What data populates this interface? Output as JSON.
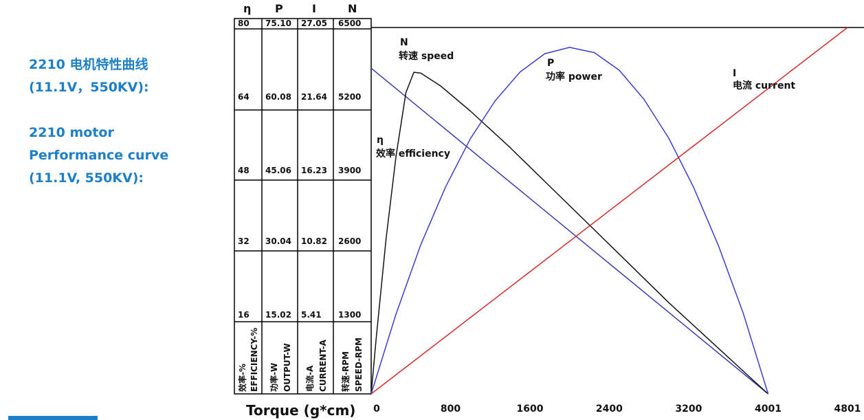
{
  "caption": {
    "line1": "2210 电机特性曲线",
    "line2": "(11.1V，550KV):",
    "line3": "2210 motor",
    "line4": "Performance curve",
    "line5": "(11.1V, 550KV):"
  },
  "table": {
    "columns": [
      {
        "symbol": "η",
        "name_cn": "效率-%",
        "name_en": "EFFICIENCY-%",
        "values": [
          "80",
          "64",
          "48",
          "32",
          "16"
        ]
      },
      {
        "symbol": "P",
        "name_cn": "功率-W",
        "name_en": "OUTPUT-W",
        "values": [
          "75.10",
          "60.08",
          "45.06",
          "30.04",
          "15.02"
        ]
      },
      {
        "symbol": "I",
        "name_cn": "电流-A",
        "name_en": "CURRENT-A",
        "values": [
          "27.05",
          "21.64",
          "16.23",
          "10.82",
          "5.41"
        ]
      },
      {
        "symbol": "N",
        "name_cn": "转速-RPM",
        "name_en": "SPEED-RPM",
        "values": [
          "6500",
          "5200",
          "3900",
          "2600",
          "1300"
        ]
      }
    ]
  },
  "chart_data": {
    "type": "line",
    "xlabel": "Torque (g*cm)",
    "x_ticks": [
      "0",
      "800",
      "1600",
      "2400",
      "3200",
      "4001",
      "4801"
    ],
    "xlim": [
      0,
      4801
    ],
    "grid": false,
    "series": [
      {
        "name": "N",
        "label_cn": "转速",
        "label_en": "speed",
        "unit": "RPM",
        "color": "#3b3bb0",
        "x": [
          0,
          4001
        ],
        "y": [
          5800,
          0
        ]
      },
      {
        "name": "η",
        "label_cn": "效率",
        "label_en": "efficiency",
        "unit": "%",
        "color": "#111111",
        "x": [
          0,
          50,
          150,
          250,
          350,
          430,
          500,
          700,
          1000,
          1400,
          1800,
          2200,
          2600,
          3000,
          3400,
          3800,
          4001
        ],
        "y": [
          0,
          12,
          34,
          52,
          66,
          70.5,
          70.3,
          67.5,
          62,
          54,
          45.5,
          37,
          28.5,
          20,
          12,
          4,
          0
        ]
      },
      {
        "name": "P",
        "label_cn": "功率",
        "label_en": "power",
        "unit": "W",
        "color": "#3b3bd6",
        "x": [
          0,
          250,
          500,
          750,
          1000,
          1250,
          1500,
          1750,
          2000,
          2250,
          2500,
          2750,
          3000,
          3250,
          3500,
          3750,
          4001
        ],
        "y": [
          0,
          16.4,
          30.7,
          42.6,
          52.5,
          60.3,
          66.2,
          70.0,
          71.3,
          70.2,
          66.6,
          60.6,
          52.6,
          42.5,
          30.5,
          16.6,
          0
        ]
      },
      {
        "name": "I",
        "label_cn": "电流",
        "label_en": "current",
        "unit": "A",
        "color": "#d42a2a",
        "x": [
          0,
          4801
        ],
        "y": [
          0,
          28.3
        ]
      }
    ]
  }
}
